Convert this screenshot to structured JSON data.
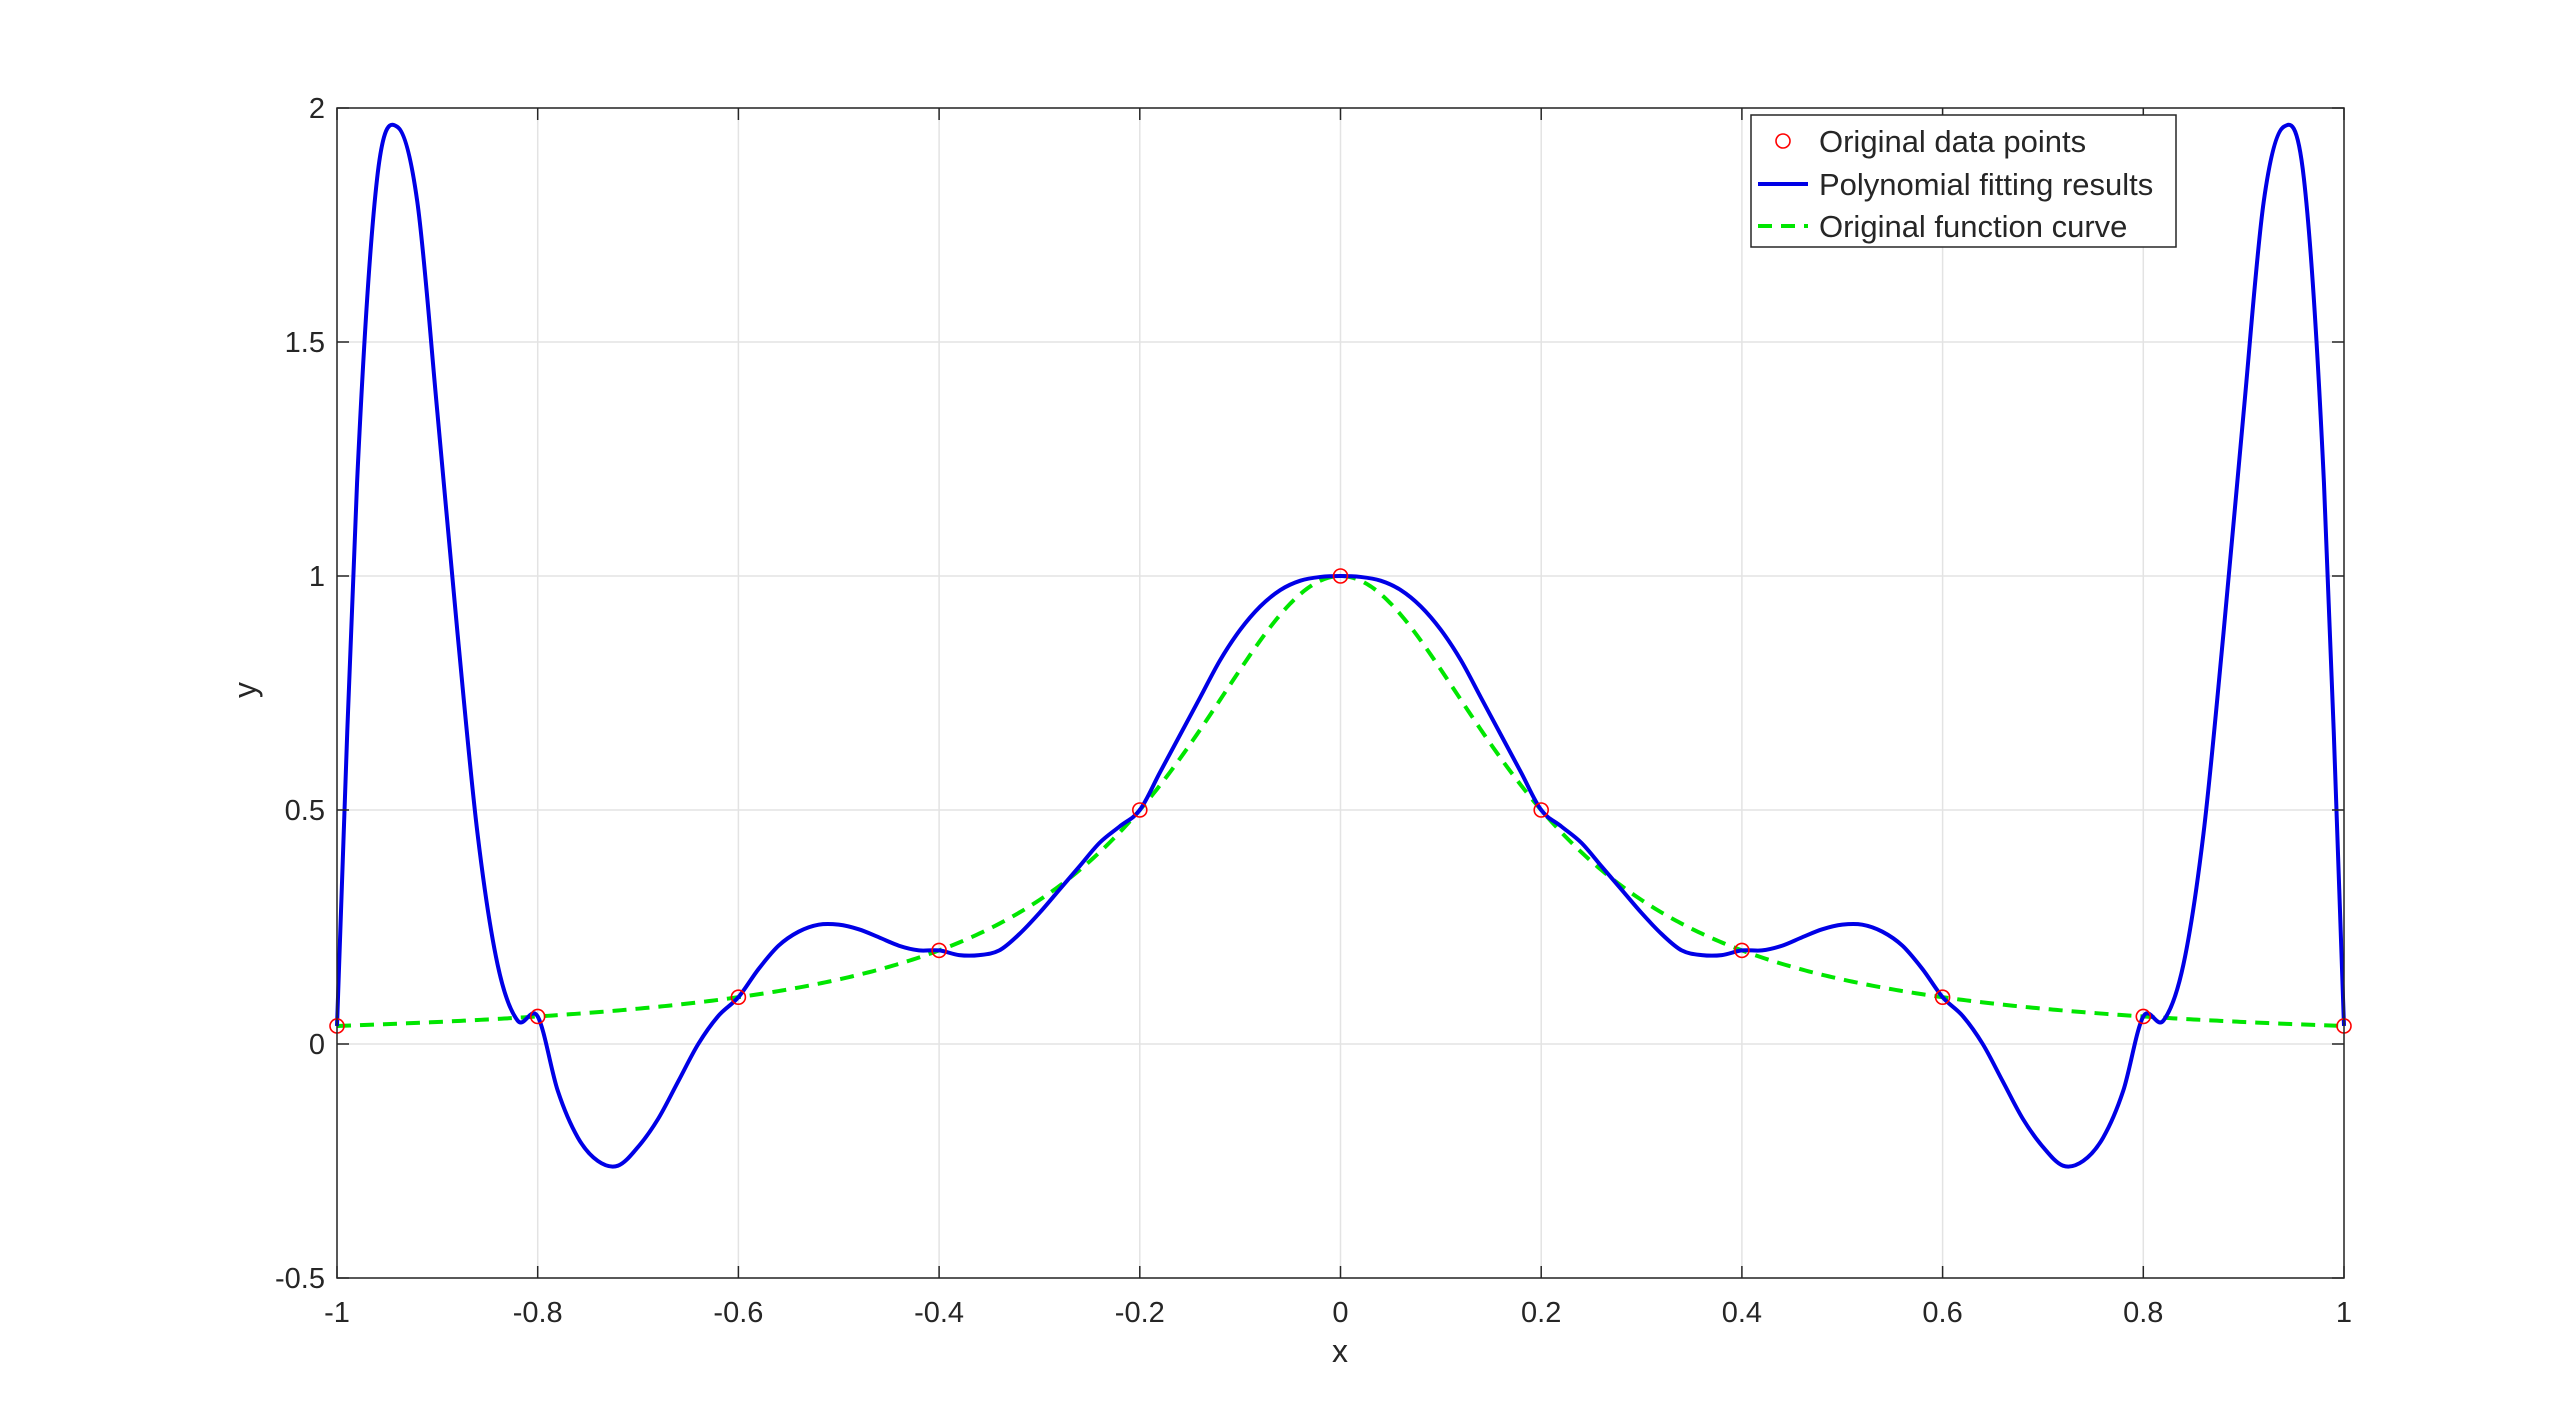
{
  "chart_data": {
    "type": "line",
    "title": "",
    "xlabel": "x",
    "ylabel": "y",
    "xlim": [
      -1,
      1
    ],
    "ylim": [
      -0.5,
      2
    ],
    "xticks": [
      -1,
      -0.8,
      -0.6,
      -0.4,
      -0.2,
      0,
      0.2,
      0.4,
      0.6,
      0.8,
      1
    ],
    "xtick_labels": [
      "-1",
      "-0.8",
      "-0.6",
      "-0.4",
      "-0.2",
      "0",
      "0.2",
      "0.4",
      "0.6",
      "0.8",
      "1"
    ],
    "yticks": [
      -0.5,
      0,
      0.5,
      1,
      1.5,
      2
    ],
    "ytick_labels": [
      "-0.5",
      "0",
      "0.5",
      "1",
      "1.5",
      "2"
    ],
    "grid": true,
    "legend_position": "top-right",
    "series": [
      {
        "name": "Original data points",
        "style": "markers",
        "marker": "circle",
        "color": "#ff0000",
        "x": [
          -1,
          -0.8,
          -0.6,
          -0.4,
          -0.2,
          0,
          0.2,
          0.4,
          0.6,
          0.8,
          1
        ],
        "y": [
          0.0385,
          0.0588,
          0.1,
          0.2,
          0.5,
          1,
          0.5,
          0.2,
          0.1,
          0.0588,
          0.0385
        ]
      },
      {
        "name": "Polynomial fitting results",
        "style": "solid",
        "color": "#0000e6",
        "x": [
          -1,
          -0.98,
          -0.96,
          -0.94,
          -0.92,
          -0.9,
          -0.88,
          -0.86,
          -0.84,
          -0.82,
          -0.8,
          -0.78,
          -0.76,
          -0.74,
          -0.72,
          -0.7,
          -0.68,
          -0.66,
          -0.64,
          -0.62,
          -0.6,
          -0.58,
          -0.56,
          -0.54,
          -0.52,
          -0.5,
          -0.48,
          -0.46,
          -0.44,
          -0.42,
          -0.4,
          -0.38,
          -0.36,
          -0.34,
          -0.32,
          -0.3,
          -0.28,
          -0.26,
          -0.24,
          -0.22,
          -0.2,
          -0.18,
          -0.16,
          -0.14,
          -0.12,
          -0.1,
          -0.08,
          -0.06,
          -0.04,
          -0.02,
          0,
          0.02,
          0.04,
          0.06,
          0.08,
          0.1,
          0.12,
          0.14,
          0.16,
          0.18,
          0.2,
          0.22,
          0.24,
          0.26,
          0.28,
          0.3,
          0.32,
          0.34,
          0.36,
          0.38,
          0.4,
          0.42,
          0.44,
          0.46,
          0.48,
          0.5,
          0.52,
          0.54,
          0.56,
          0.58,
          0.6,
          0.62,
          0.64,
          0.66,
          0.68,
          0.7,
          0.72,
          0.74,
          0.76,
          0.78,
          0.8,
          0.82,
          0.84,
          0.86,
          0.88,
          0.9,
          0.92,
          0.94,
          0.96,
          0.98,
          1
        ],
        "y": [
          0.0385,
          1.2,
          1.85,
          1.96,
          1.8,
          1.35,
          0.88,
          0.45,
          0.17,
          0.05,
          0.0588,
          -0.1,
          -0.2,
          -0.25,
          -0.26,
          -0.22,
          -0.16,
          -0.08,
          0,
          0.06,
          0.1,
          0.16,
          0.21,
          0.24,
          0.255,
          0.255,
          0.245,
          0.228,
          0.21,
          0.2,
          0.2,
          0.19,
          0.19,
          0.2,
          0.235,
          0.28,
          0.33,
          0.38,
          0.43,
          0.465,
          0.5,
          0.58,
          0.66,
          0.74,
          0.82,
          0.885,
          0.935,
          0.97,
          0.99,
          0.998,
          1,
          0.998,
          0.99,
          0.97,
          0.935,
          0.885,
          0.82,
          0.74,
          0.66,
          0.58,
          0.5,
          0.465,
          0.43,
          0.38,
          0.33,
          0.28,
          0.235,
          0.2,
          0.19,
          0.19,
          0.2,
          0.2,
          0.21,
          0.228,
          0.245,
          0.255,
          0.255,
          0.24,
          0.21,
          0.16,
          0.1,
          0.06,
          0,
          -0.08,
          -0.16,
          -0.22,
          -0.26,
          -0.25,
          -0.2,
          -0.1,
          0.0588,
          0.05,
          0.17,
          0.45,
          0.88,
          1.35,
          1.8,
          1.96,
          1.85,
          1.2,
          0.0385
        ]
      },
      {
        "name": "Original function curve",
        "style": "dashed",
        "color": "#00e600",
        "function": "1/(1+25x^2)"
      }
    ]
  }
}
